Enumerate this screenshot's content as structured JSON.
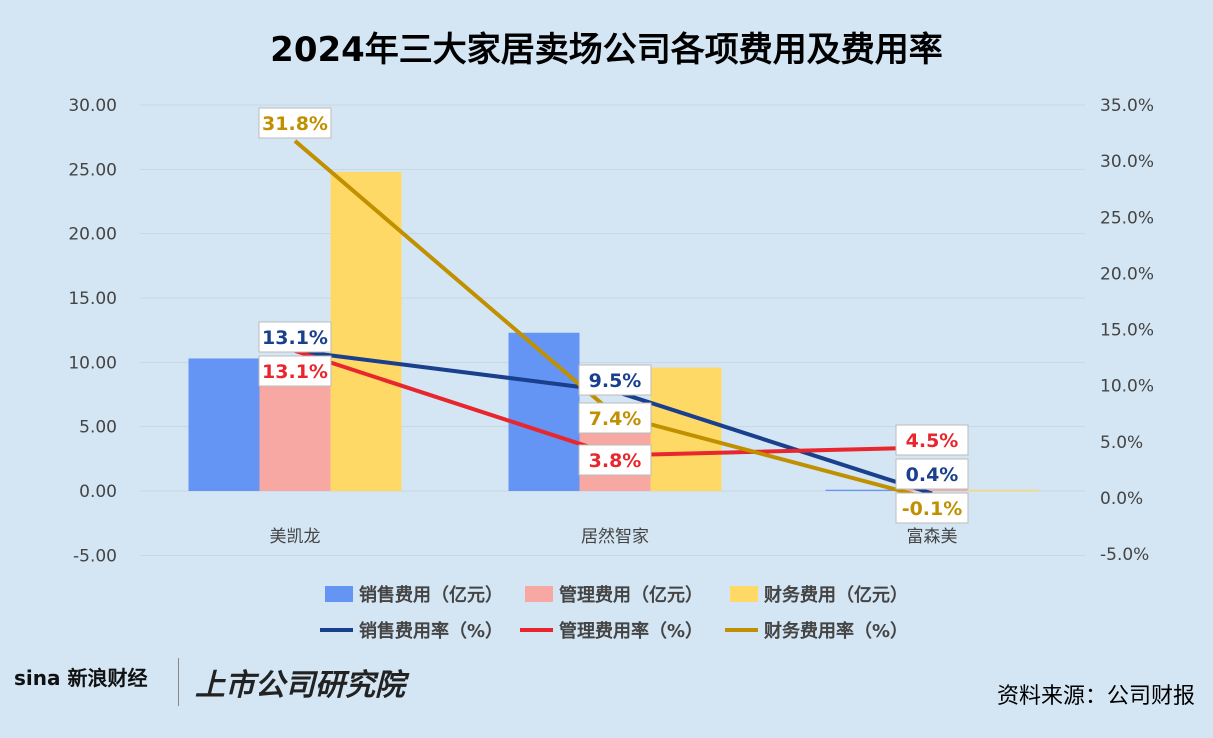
{
  "chart_data": {
    "type": "bar",
    "title": "2024年三大家居卖场公司各项费用及费用率",
    "categories": [
      "美凯龙",
      "居然智家",
      "富森美"
    ],
    "y_left": {
      "ylim": [
        -5,
        30
      ],
      "ticks": [
        "-5.00",
        "0.00",
        "5.00",
        "10.00",
        "15.00",
        "20.00",
        "25.00",
        "30.00"
      ]
    },
    "y_right": {
      "ylim": [
        -5,
        35
      ],
      "ticks": [
        "-5.0%",
        "0.0%",
        "5.0%",
        "10.0%",
        "15.0%",
        "20.0%",
        "25.0%",
        "30.0%",
        "35.0%"
      ]
    },
    "grid": true,
    "legend_placement": "bottom",
    "bar_series": [
      {
        "name": "销售费用（亿元）",
        "color": "#6495f5",
        "values": [
          10.3,
          12.3,
          0.1
        ]
      },
      {
        "name": "管理费用（亿元）",
        "color": "#f8a8a2",
        "values": [
          10.3,
          4.9,
          0.5
        ]
      },
      {
        "name": "财务费用（亿元）",
        "color": "#ffd966",
        "values": [
          24.8,
          9.6,
          0.1
        ]
      }
    ],
    "line_series": [
      {
        "name": "销售费用率（%）",
        "color": "#1a3f8c",
        "values": [
          13.1,
          9.5,
          0.4
        ],
        "labels": [
          "13.1%",
          "9.5%",
          "0.4%"
        ]
      },
      {
        "name": "管理费用率（%）",
        "color": "#e8262e",
        "values": [
          13.1,
          3.8,
          4.5
        ],
        "labels": [
          "13.1%",
          "3.8%",
          "4.5%"
        ]
      },
      {
        "name": "财务费用率（%）",
        "color": "#c09000",
        "values": [
          31.8,
          7.4,
          -0.1
        ],
        "labels": [
          "31.8%",
          "7.4%",
          "-0.1%"
        ]
      }
    ]
  },
  "source": "资料来源：公司财报",
  "logos": [
    "sina新浪财经",
    "上市公司研究院"
  ]
}
